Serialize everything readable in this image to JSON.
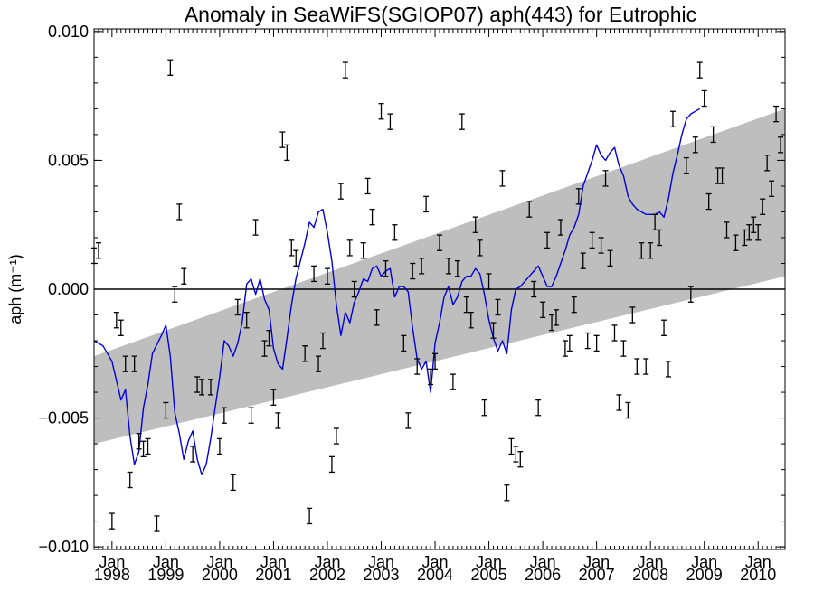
{
  "chart_data": {
    "type": "line",
    "title": "Anomaly in SeaWiFS(SGIOP07) aph(443) for Eutrophic",
    "xlabel": "",
    "ylabel": "aph (m⁻¹)",
    "xlim": [
      "1997-09",
      "2010-07"
    ],
    "ylim": [
      -0.0101,
      0.0101
    ],
    "y_ticks": [
      {
        "value": -0.01,
        "label": "−0.010"
      },
      {
        "value": -0.005,
        "label": "−0.005"
      },
      {
        "value": 0.0,
        "label": "0.000"
      },
      {
        "value": 0.005,
        "label": "0.005"
      },
      {
        "value": 0.01,
        "label": "0.010"
      }
    ],
    "x_ticks": [
      {
        "value": "1998-01",
        "month": "Jan",
        "year": "1998"
      },
      {
        "value": "1999-01",
        "month": "Jan",
        "year": "1999"
      },
      {
        "value": "2000-01",
        "month": "Jan",
        "year": "2000"
      },
      {
        "value": "2001-01",
        "month": "Jan",
        "year": "2001"
      },
      {
        "value": "2002-01",
        "month": "Jan",
        "year": "2002"
      },
      {
        "value": "2003-01",
        "month": "Jan",
        "year": "2003"
      },
      {
        "value": "2004-01",
        "month": "Jan",
        "year": "2004"
      },
      {
        "value": "2005-01",
        "month": "Jan",
        "year": "2005"
      },
      {
        "value": "2006-01",
        "month": "Jan",
        "year": "2006"
      },
      {
        "value": "2007-01",
        "month": "Jan",
        "year": "2007"
      },
      {
        "value": "2008-01",
        "month": "Jan",
        "year": "2008"
      },
      {
        "value": "2009-01",
        "month": "Jan",
        "year": "2009"
      },
      {
        "value": "2010-01",
        "month": "Jan",
        "year": "2010"
      }
    ],
    "zero_line": 0.0,
    "trend_band": {
      "color": "#bebebe",
      "start": {
        "x": "1997-09",
        "upper": -0.0026,
        "lower": -0.006
      },
      "end": {
        "x": "2010-07",
        "upper": 0.007,
        "lower": 0.0005
      }
    },
    "points": {
      "color": "#000000",
      "error_half_width": 0.0003,
      "data": [
        [
          "1997-09",
          0.0013
        ],
        [
          "1997-10",
          0.0015
        ],
        [
          "1998-01",
          -0.009
        ],
        [
          "1998-02",
          -0.0012
        ],
        [
          "1998-03",
          -0.0015
        ],
        [
          "1998-04",
          -0.0029
        ],
        [
          "1998-05",
          -0.0074
        ],
        [
          "1998-06",
          -0.0029
        ],
        [
          "1998-07",
          -0.0059
        ],
        [
          "1998-08",
          -0.0062
        ],
        [
          "1998-09",
          -0.0061
        ],
        [
          "1998-11",
          -0.0091
        ],
        [
          "1999-01",
          -0.0047
        ],
        [
          "1999-02",
          0.0086
        ],
        [
          "1999-03",
          -0.0002
        ],
        [
          "1999-04",
          0.003
        ],
        [
          "1999-05",
          0.0005
        ],
        [
          "1999-07",
          -0.0064
        ],
        [
          "1999-08",
          -0.0037
        ],
        [
          "1999-09",
          -0.0038
        ],
        [
          "1999-11",
          -0.0038
        ],
        [
          "2000-01",
          -0.0061
        ],
        [
          "2000-02",
          -0.0049
        ],
        [
          "2000-04",
          -0.0075
        ],
        [
          "2000-05",
          -0.0007
        ],
        [
          "2000-07",
          -0.0012
        ],
        [
          "2000-08",
          -0.0049
        ],
        [
          "2000-09",
          0.0024
        ],
        [
          "2000-11",
          -0.0023
        ],
        [
          "2000-12",
          -0.0019
        ],
        [
          "2001-01",
          -0.0042
        ],
        [
          "2001-02",
          -0.0051
        ],
        [
          "2001-03",
          0.0058
        ],
        [
          "2001-04",
          0.0053
        ],
        [
          "2001-05",
          0.0016
        ],
        [
          "2001-06",
          0.0012
        ],
        [
          "2001-08",
          -0.0025
        ],
        [
          "2001-09",
          -0.0088
        ],
        [
          "2001-10",
          0.0006
        ],
        [
          "2001-11",
          -0.0029
        ],
        [
          "2001-12",
          -0.002
        ],
        [
          "2002-01",
          0.0005
        ],
        [
          "2002-02",
          -0.0068
        ],
        [
          "2002-03",
          -0.0057
        ],
        [
          "2002-04",
          0.0038
        ],
        [
          "2002-05",
          0.0085
        ],
        [
          "2002-06",
          0.0016
        ],
        [
          "2002-07",
          0.0
        ],
        [
          "2002-09",
          0.0015
        ],
        [
          "2002-10",
          0.004
        ],
        [
          "2002-11",
          0.0028
        ],
        [
          "2002-12",
          -0.0011
        ],
        [
          "2003-01",
          0.0069
        ],
        [
          "2003-02",
          0.0008
        ],
        [
          "2003-03",
          0.0065
        ],
        [
          "2003-04",
          0.0022
        ],
        [
          "2003-06",
          -0.0021
        ],
        [
          "2003-07",
          -0.0051
        ],
        [
          "2003-08",
          0.0007
        ],
        [
          "2003-09",
          -0.003
        ],
        [
          "2003-10",
          0.0009
        ],
        [
          "2003-11",
          0.0033
        ],
        [
          "2003-12",
          -0.0034
        ],
        [
          "2004-01",
          -0.0028
        ],
        [
          "2004-02",
          0.0018
        ],
        [
          "2004-04",
          0.0009
        ],
        [
          "2004-05",
          -0.0036
        ],
        [
          "2004-06",
          0.0008
        ],
        [
          "2004-07",
          0.0065
        ],
        [
          "2004-08",
          -0.0006
        ],
        [
          "2004-09",
          -0.0012
        ],
        [
          "2004-10",
          0.0025
        ],
        [
          "2004-11",
          0.0016
        ],
        [
          "2004-12",
          -0.0046
        ],
        [
          "2005-01",
          0.0003
        ],
        [
          "2005-02",
          -0.0016
        ],
        [
          "2005-03",
          -0.0007
        ],
        [
          "2005-04",
          0.0043
        ],
        [
          "2005-05",
          -0.0079
        ],
        [
          "2005-06",
          -0.0061
        ],
        [
          "2005-07",
          -0.0064
        ],
        [
          "2005-08",
          -0.0066
        ],
        [
          "2005-10",
          0.0031
        ],
        [
          "2005-11",
          0.0
        ],
        [
          "2005-12",
          -0.0046
        ],
        [
          "2006-01",
          -0.0008
        ],
        [
          "2006-02",
          0.0019
        ],
        [
          "2006-03",
          -0.0013
        ],
        [
          "2006-04",
          -0.0011
        ],
        [
          "2006-05",
          0.0024
        ],
        [
          "2006-06",
          -0.0023
        ],
        [
          "2006-07",
          -0.0021
        ],
        [
          "2006-08",
          -0.0006
        ],
        [
          "2006-09",
          0.0036
        ],
        [
          "2006-10",
          0.0011
        ],
        [
          "2006-11",
          -0.002
        ],
        [
          "2006-12",
          0.0019
        ],
        [
          "2007-01",
          -0.0021
        ],
        [
          "2007-02",
          0.0017
        ],
        [
          "2007-03",
          0.0043
        ],
        [
          "2007-04",
          0.0012
        ],
        [
          "2007-05",
          -0.0017
        ],
        [
          "2007-06",
          -0.0044
        ],
        [
          "2007-07",
          -0.0023
        ],
        [
          "2007-08",
          -0.0047
        ],
        [
          "2007-09",
          -0.001
        ],
        [
          "2007-10",
          -0.003
        ],
        [
          "2007-11",
          0.0015
        ],
        [
          "2007-12",
          -0.003
        ],
        [
          "2008-01",
          0.0015
        ],
        [
          "2008-02",
          0.0026
        ],
        [
          "2008-03",
          0.002
        ],
        [
          "2008-04",
          -0.0015
        ],
        [
          "2008-05",
          -0.0031
        ],
        [
          "2008-06",
          0.0066
        ],
        [
          "2008-09",
          0.0048
        ],
        [
          "2008-10",
          -0.0002
        ],
        [
          "2008-11",
          0.0056
        ],
        [
          "2008-12",
          0.0085
        ],
        [
          "2009-01",
          0.0074
        ],
        [
          "2009-02",
          0.0034
        ],
        [
          "2009-03",
          0.006
        ],
        [
          "2009-04",
          0.0044
        ],
        [
          "2009-05",
          0.0044
        ],
        [
          "2009-06",
          0.0023
        ],
        [
          "2009-08",
          0.0018
        ],
        [
          "2009-10",
          0.002
        ],
        [
          "2009-11",
          0.0022
        ],
        [
          "2009-12",
          0.0025
        ],
        [
          "2010-01",
          0.0022
        ],
        [
          "2010-02",
          0.0032
        ],
        [
          "2010-03",
          0.0049
        ],
        [
          "2010-04",
          0.0039
        ],
        [
          "2010-05",
          0.0068
        ],
        [
          "2010-06",
          0.0056
        ]
      ]
    },
    "series": [
      {
        "color": "#0000dd",
        "values": [
          [
            "1997-09",
            -0.002
          ],
          [
            "1997-11",
            -0.0022
          ],
          [
            "1998-01",
            -0.0028
          ],
          [
            "1998-03",
            -0.0043
          ],
          [
            "1998-04",
            -0.0039
          ],
          [
            "1998-05",
            -0.0057
          ],
          [
            "1998-06",
            -0.0068
          ],
          [
            "1998-07",
            -0.0063
          ],
          [
            "1998-08",
            -0.0046
          ],
          [
            "1998-09",
            -0.0037
          ],
          [
            "1998-10",
            -0.0025
          ],
          [
            "1998-12",
            -0.0018
          ],
          [
            "1999-01",
            -0.0014
          ],
          [
            "1999-02",
            -0.0026
          ],
          [
            "1999-03",
            -0.0048
          ],
          [
            "1999-04",
            -0.0056
          ],
          [
            "1999-05",
            -0.0066
          ],
          [
            "1999-06",
            -0.0059
          ],
          [
            "1999-07",
            -0.0055
          ],
          [
            "1999-08",
            -0.0066
          ],
          [
            "1999-09",
            -0.0072
          ],
          [
            "1999-10",
            -0.0068
          ],
          [
            "1999-11",
            -0.0058
          ],
          [
            "1999-12",
            -0.0046
          ],
          [
            "2000-01",
            -0.0034
          ],
          [
            "2000-02",
            -0.002
          ],
          [
            "2000-03",
            -0.0022
          ],
          [
            "2000-04",
            -0.0026
          ],
          [
            "2000-05",
            -0.0021
          ],
          [
            "2000-06",
            -0.0013
          ],
          [
            "2000-07",
            0.0002
          ],
          [
            "2000-08",
            0.0004
          ],
          [
            "2000-09",
            -0.0002
          ],
          [
            "2000-10",
            0.0004
          ],
          [
            "2000-11",
            -0.0004
          ],
          [
            "2000-12",
            -0.0008
          ],
          [
            "2001-01",
            -0.0023
          ],
          [
            "2001-02",
            -0.0029
          ],
          [
            "2001-03",
            -0.0031
          ],
          [
            "2001-04",
            -0.0019
          ],
          [
            "2001-05",
            -0.0006
          ],
          [
            "2001-06",
            0.0004
          ],
          [
            "2001-07",
            0.0011
          ],
          [
            "2001-08",
            0.0018
          ],
          [
            "2001-09",
            0.0026
          ],
          [
            "2001-10",
            0.0024
          ],
          [
            "2001-11",
            0.003
          ],
          [
            "2001-12",
            0.0031
          ],
          [
            "2002-01",
            0.0022
          ],
          [
            "2002-02",
            0.0011
          ],
          [
            "2002-03",
            -0.0006
          ],
          [
            "2002-04",
            -0.0018
          ],
          [
            "2002-05",
            -0.0009
          ],
          [
            "2002-06",
            -0.0013
          ],
          [
            "2002-07",
            -0.0005
          ],
          [
            "2002-08",
            -0.0001
          ],
          [
            "2002-09",
            0.0004
          ],
          [
            "2002-10",
            0.0003
          ],
          [
            "2002-11",
            0.0008
          ],
          [
            "2002-12",
            0.0009
          ],
          [
            "2003-01",
            0.0005
          ],
          [
            "2003-02",
            0.0007
          ],
          [
            "2003-03",
            0.0008
          ],
          [
            "2003-04",
            -0.0003
          ],
          [
            "2003-05",
            0.0001
          ],
          [
            "2003-06",
            0.0001
          ],
          [
            "2003-07",
            -0.0001
          ],
          [
            "2003-08",
            -0.0015
          ],
          [
            "2003-09",
            -0.0027
          ],
          [
            "2003-10",
            -0.0031
          ],
          [
            "2003-11",
            -0.0028
          ],
          [
            "2003-12",
            -0.004
          ],
          [
            "2004-01",
            -0.0021
          ],
          [
            "2004-02",
            -0.0013
          ],
          [
            "2004-03",
            -0.0003
          ],
          [
            "2004-04",
            0.0001
          ],
          [
            "2004-05",
            -0.0006
          ],
          [
            "2004-06",
            -0.0003
          ],
          [
            "2004-07",
            0.0003
          ],
          [
            "2004-08",
            0.0005
          ],
          [
            "2004-09",
            0.0005
          ],
          [
            "2004-10",
            0.0008
          ],
          [
            "2004-11",
            0.0006
          ],
          [
            "2004-12",
            -0.0002
          ],
          [
            "2005-01",
            -0.0012
          ],
          [
            "2005-02",
            -0.0019
          ],
          [
            "2005-03",
            -0.0024
          ],
          [
            "2005-04",
            -0.002
          ],
          [
            "2005-05",
            -0.0025
          ],
          [
            "2005-06",
            -0.0008
          ],
          [
            "2005-07",
            0.0
          ],
          [
            "2005-08",
            0.0001
          ],
          [
            "2005-09",
            0.0003
          ],
          [
            "2005-10",
            0.0005
          ],
          [
            "2005-11",
            0.0007
          ],
          [
            "2005-12",
            0.0009
          ],
          [
            "2006-01",
            0.0005
          ],
          [
            "2006-02",
            0.0001
          ],
          [
            "2006-03",
            0.0001
          ],
          [
            "2006-04",
            0.0005
          ],
          [
            "2006-05",
            0.001
          ],
          [
            "2006-06",
            0.0015
          ],
          [
            "2006-07",
            0.0021
          ],
          [
            "2006-08",
            0.0024
          ],
          [
            "2006-09",
            0.0029
          ],
          [
            "2006-10",
            0.004
          ],
          [
            "2006-11",
            0.0045
          ],
          [
            "2006-12",
            0.005
          ],
          [
            "2007-01",
            0.0056
          ],
          [
            "2007-02",
            0.0052
          ],
          [
            "2007-03",
            0.005
          ],
          [
            "2007-04",
            0.0053
          ],
          [
            "2007-05",
            0.0055
          ],
          [
            "2007-06",
            0.0048
          ],
          [
            "2007-07",
            0.0044
          ],
          [
            "2007-08",
            0.0036
          ],
          [
            "2007-09",
            0.0033
          ],
          [
            "2007-10",
            0.0031
          ],
          [
            "2007-11",
            0.003
          ],
          [
            "2007-12",
            0.0029
          ],
          [
            "2008-01",
            0.0029
          ],
          [
            "2008-02",
            0.0029
          ],
          [
            "2008-03",
            0.003
          ],
          [
            "2008-04",
            0.0028
          ],
          [
            "2008-05",
            0.0035
          ],
          [
            "2008-06",
            0.0045
          ],
          [
            "2008-07",
            0.0052
          ],
          [
            "2008-08",
            0.006
          ],
          [
            "2008-09",
            0.0066
          ],
          [
            "2008-10",
            0.0068
          ],
          [
            "2008-11",
            0.0069
          ],
          [
            "2008-12",
            0.007
          ]
        ]
      }
    ]
  }
}
